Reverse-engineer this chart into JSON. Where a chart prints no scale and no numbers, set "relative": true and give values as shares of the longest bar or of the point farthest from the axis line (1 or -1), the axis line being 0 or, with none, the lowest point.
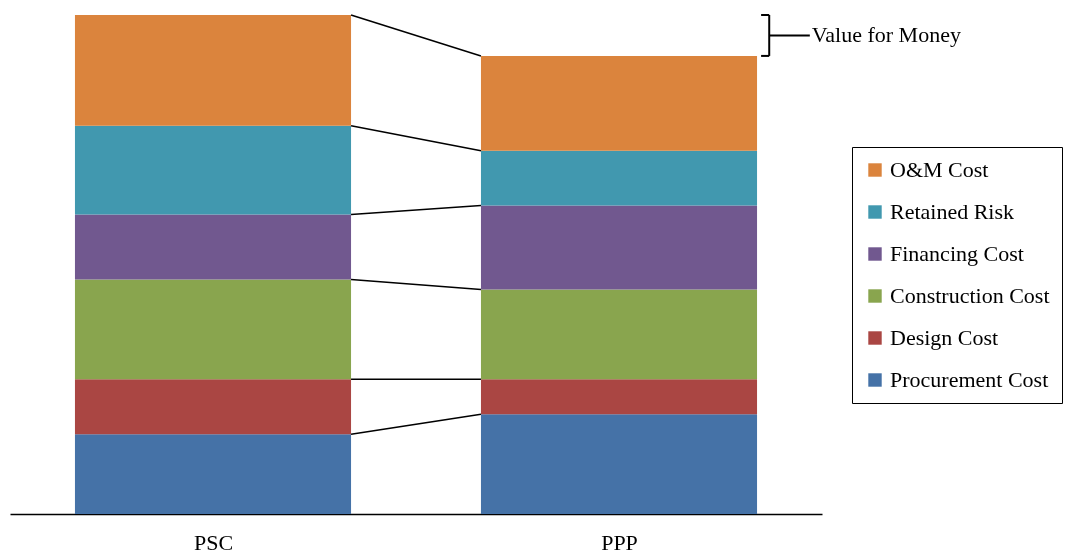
{
  "chart_data": {
    "type": "bar",
    "relative": true,
    "stacked": true,
    "categories": [
      "PSC",
      "PPP"
    ],
    "series": [
      {
        "name": "Procurement Cost",
        "color": "#4572a7",
        "values": [
          0.16,
          0.2
        ]
      },
      {
        "name": "Design Cost",
        "color": "#aa4643",
        "values": [
          0.11,
          0.07
        ]
      },
      {
        "name": "Construction Cost",
        "color": "#89a54e",
        "values": [
          0.2,
          0.18
        ]
      },
      {
        "name": "Financing Cost",
        "color": "#71588f",
        "values": [
          0.13,
          0.168
        ]
      },
      {
        "name": "Retained Risk",
        "color": "#4198af",
        "values": [
          0.178,
          0.11
        ]
      },
      {
        "name": "O&M Cost",
        "color": "#db843d",
        "values": [
          0.222,
          0.19
        ]
      }
    ],
    "legend": "right",
    "annotations": [
      "Value for Money"
    ]
  }
}
